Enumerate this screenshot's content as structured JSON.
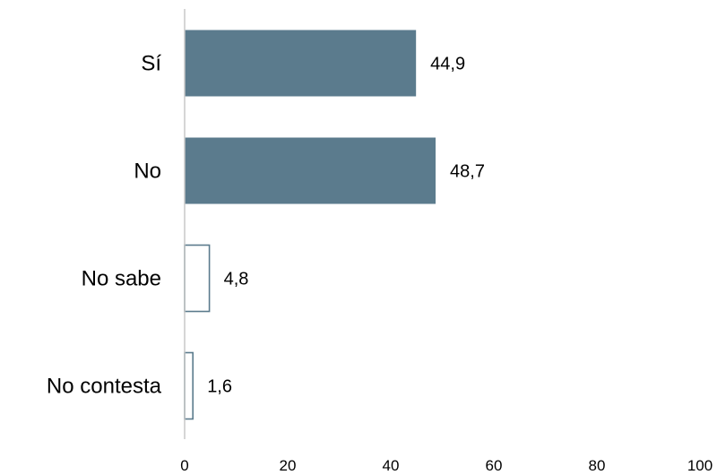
{
  "chart_data": {
    "type": "bar",
    "orientation": "horizontal",
    "categories": [
      "Sí",
      "No",
      "No sabe",
      "No contesta"
    ],
    "values": [
      44.9,
      48.7,
      4.8,
      1.6
    ],
    "value_labels": [
      "44,9",
      "48,7",
      "4,8",
      "1,6"
    ],
    "bar_styles": [
      "filled",
      "filled",
      "outline",
      "outline"
    ],
    "xlim": [
      0,
      100
    ],
    "x_ticks": [
      0,
      20,
      40,
      60,
      80,
      100
    ],
    "x_tick_labels": [
      "0",
      "20",
      "40",
      "60",
      "80",
      "100"
    ],
    "grid": false,
    "title": "",
    "xlabel": "",
    "ylabel": "",
    "colors": {
      "bar_fill": "#5b7b8d",
      "bar_outline": "#5b7b8d",
      "axis": "#c8c8c8",
      "text": "#000000"
    }
  }
}
